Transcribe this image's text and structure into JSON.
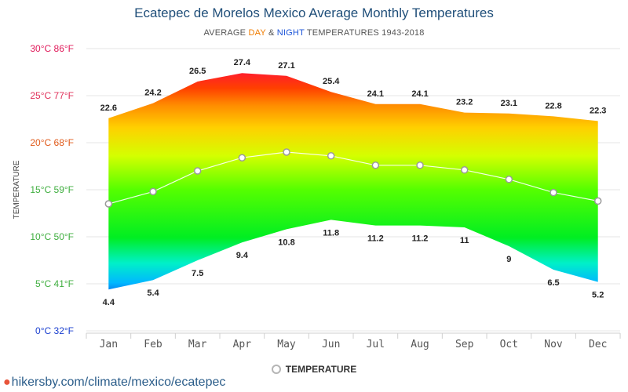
{
  "title": "Ecatepec de Morelos Mexico Average Monthly Temperatures",
  "subtitle": {
    "prefix": "AVERAGE",
    "day": "DAY",
    "amp": "&",
    "night": "NIGHT",
    "suffix": "TEMPERATURES 1943-2018"
  },
  "colors": {
    "day_word": "#f07c00",
    "night_word": "#1a53d8",
    "title": "#1f4e79"
  },
  "legend": {
    "label": "TEMPERATURE"
  },
  "footer": {
    "icon": "map-pin-icon",
    "text": "hikersby.com/climate/mexico/ecatepec"
  },
  "chart_data": {
    "type": "area",
    "ylabel": "TEMPERATURE",
    "ylim": [
      0,
      30
    ],
    "y_ticks": [
      {
        "value": 0,
        "label": "0°C 32°F",
        "color": "#1a3fcf"
      },
      {
        "value": 5,
        "label": "5°C 41°F",
        "color": "#3fae3f"
      },
      {
        "value": 10,
        "label": "10°C 50°F",
        "color": "#3fae3f"
      },
      {
        "value": 15,
        "label": "15°C 59°F",
        "color": "#3fae3f"
      },
      {
        "value": 20,
        "label": "20°C 68°F",
        "color": "#e05a1a"
      },
      {
        "value": 25,
        "label": "25°C 77°F",
        "color": "#e0305a"
      },
      {
        "value": 30,
        "label": "30°C 86°F",
        "color": "#e01a5a"
      }
    ],
    "categories": [
      "Jan",
      "Feb",
      "Mar",
      "Apr",
      "May",
      "Jun",
      "Jul",
      "Aug",
      "Sep",
      "Oct",
      "Nov",
      "Dec"
    ],
    "series": [
      {
        "name": "DAY",
        "values": [
          22.6,
          24.2,
          26.5,
          27.4,
          27.1,
          25.4,
          24.1,
          24.1,
          23.2,
          23.1,
          22.8,
          22.3
        ]
      },
      {
        "name": "NIGHT",
        "values": [
          4.4,
          5.4,
          7.5,
          9.4,
          10.8,
          11.8,
          11.2,
          11.2,
          11.0,
          9.0,
          6.5,
          5.2
        ]
      },
      {
        "name": "TEMPERATURE",
        "values": [
          13.5,
          14.8,
          17.0,
          18.4,
          19.0,
          18.6,
          17.6,
          17.6,
          17.1,
          16.1,
          14.7,
          13.8
        ]
      }
    ],
    "grid": true,
    "legend_position": "bottom-center"
  }
}
